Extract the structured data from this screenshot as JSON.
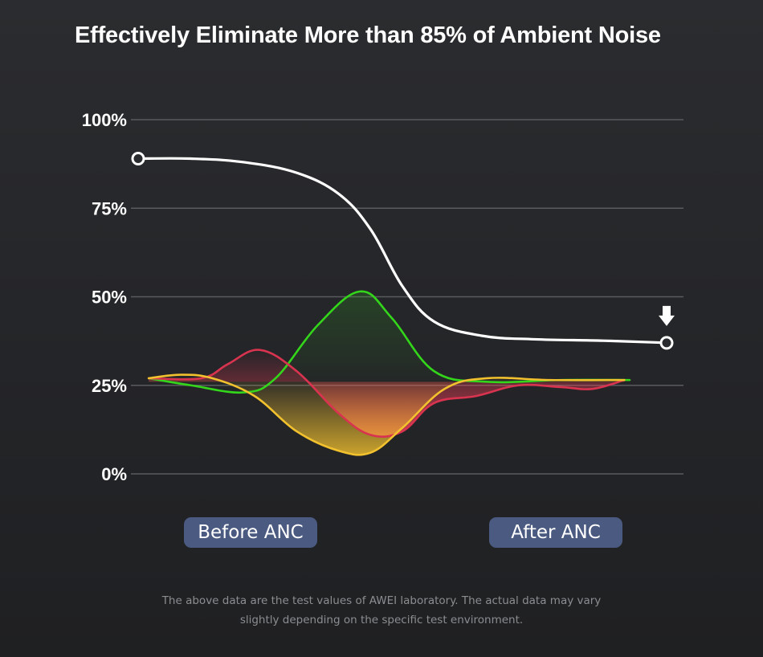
{
  "title": "Effectively Eliminate More than 85% of Ambient Noise",
  "buttons": {
    "before": "Before ANC",
    "after": "After ANC"
  },
  "footnote": {
    "line1": "The above data are the test values of AWEI laboratory. The actual data may vary",
    "line2": "slightly depending on the specific test environment."
  },
  "chart_data": {
    "type": "line",
    "title": "Effectively Eliminate More than 85% of Ambient Noise",
    "ylim": [
      0,
      100
    ],
    "y_ticks": [
      "100%",
      "75%",
      "50%",
      "25%",
      "0%"
    ],
    "y_tick_values": [
      100,
      75,
      50,
      25,
      0
    ],
    "categories": [
      "Before ANC",
      "After ANC"
    ],
    "grid": true,
    "series": [
      {
        "color": "#ffffff",
        "x": [
          0,
          0.1,
          0.2,
          0.3,
          0.38,
          0.44,
          0.5,
          0.56,
          0.65,
          0.75,
          0.88,
          1.0
        ],
        "y": [
          89,
          89,
          88,
          85,
          79,
          69,
          53,
          43,
          39,
          38,
          37.6,
          37
        ],
        "markers": "endpoints"
      },
      {
        "color": "#33d61a",
        "x": [
          0.02,
          0.1,
          0.2,
          0.26,
          0.34,
          0.42,
          0.48,
          0.56,
          0.66,
          0.8,
          0.93
        ],
        "y": [
          27,
          25,
          23,
          27,
          42,
          51.5,
          44,
          29,
          26,
          26.5,
          26.5
        ]
      },
      {
        "color": "#d8334f",
        "x": [
          0.02,
          0.12,
          0.17,
          0.23,
          0.3,
          0.38,
          0.44,
          0.5,
          0.56,
          0.64,
          0.72,
          0.8,
          0.86,
          0.92
        ],
        "y": [
          27,
          27,
          31,
          35,
          29,
          17,
          11,
          12,
          20,
          22,
          25,
          24.5,
          24,
          26.5
        ]
      },
      {
        "color": "#f2c12e",
        "x": [
          0.02,
          0.08,
          0.14,
          0.22,
          0.3,
          0.38,
          0.44,
          0.5,
          0.58,
          0.66,
          0.78,
          0.92
        ],
        "y": [
          27,
          28,
          27,
          22,
          12,
          6.5,
          6,
          13,
          24,
          27,
          26.5,
          26.5
        ]
      }
    ],
    "arrow_icon": "down-arrow-icon"
  }
}
